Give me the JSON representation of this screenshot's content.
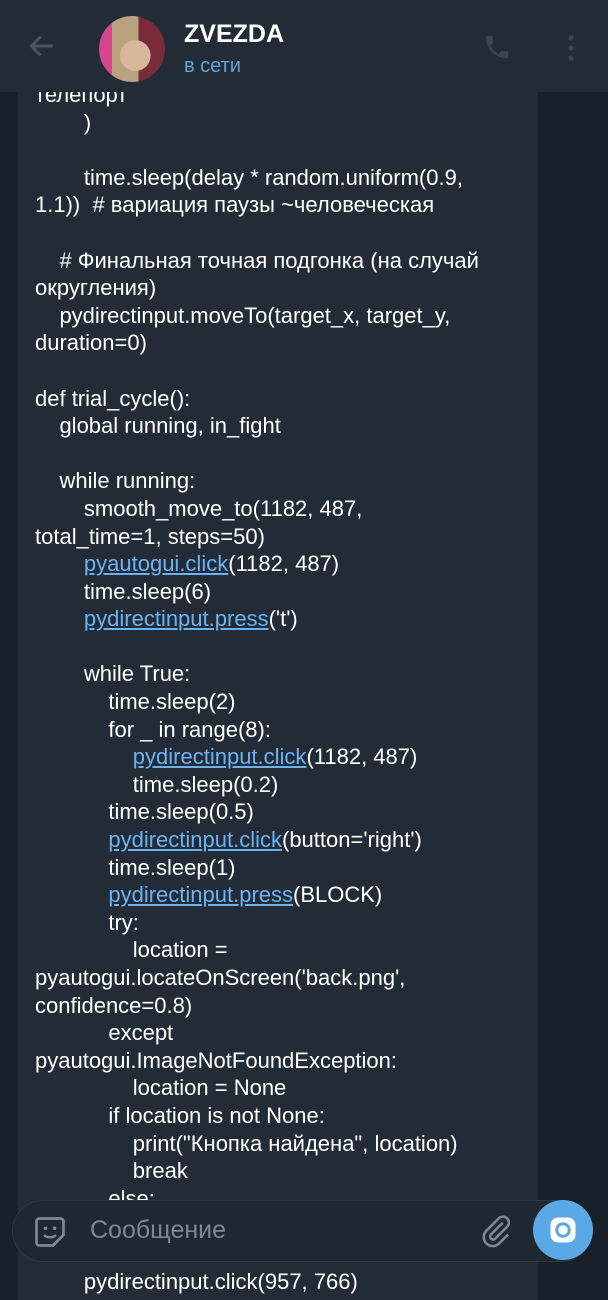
{
  "header": {
    "title": "ZVEZDA",
    "status": "в сети",
    "icons": [
      "back-arrow-icon",
      "avatar",
      "phone-icon",
      "more-vertical-icon"
    ]
  },
  "message": {
    "lines": [
      [
        {
          "t": "телепорт"
        }
      ],
      [
        {
          "t": "        )"
        }
      ],
      [
        {
          "t": ""
        }
      ],
      [
        {
          "t": "        time.sleep(delay * random.uniform(0.9,"
        }
      ],
      [
        {
          "t": "1.1))  # вариация паузы ~человеческая"
        }
      ],
      [
        {
          "t": ""
        }
      ],
      [
        {
          "t": "    # Финальная точная подгонка (на случай"
        }
      ],
      [
        {
          "t": "округления)"
        }
      ],
      [
        {
          "t": "    pydirectinput.moveTo(target_x, target_y,"
        }
      ],
      [
        {
          "t": "duration=0)"
        }
      ],
      [
        {
          "t": ""
        }
      ],
      [
        {
          "t": "def trial_cycle():"
        }
      ],
      [
        {
          "t": "    global running, in_fight"
        }
      ],
      [
        {
          "t": ""
        }
      ],
      [
        {
          "t": "    while running:"
        }
      ],
      [
        {
          "t": "        smooth_move_to(1182, 487,"
        }
      ],
      [
        {
          "t": "total_time=1, steps=50)"
        }
      ],
      [
        {
          "t": "        "
        },
        {
          "t": "pyautogui.click",
          "link": true
        },
        {
          "t": "(1182, 487)"
        }
      ],
      [
        {
          "t": "        time.sleep(6)"
        }
      ],
      [
        {
          "t": "        "
        },
        {
          "t": "pydirectinput.press",
          "link": true
        },
        {
          "t": "('t')"
        }
      ],
      [
        {
          "t": ""
        }
      ],
      [
        {
          "t": "        while True:"
        }
      ],
      [
        {
          "t": "            time.sleep(2)"
        }
      ],
      [
        {
          "t": "            for _ in range(8):"
        }
      ],
      [
        {
          "t": "                "
        },
        {
          "t": "pydirectinput.click",
          "link": true
        },
        {
          "t": "(1182, 487)"
        }
      ],
      [
        {
          "t": "                time.sleep(0.2)"
        }
      ],
      [
        {
          "t": "            time.sleep(0.5)"
        }
      ],
      [
        {
          "t": "            "
        },
        {
          "t": "pydirectinput.click",
          "link": true
        },
        {
          "t": "(button='right')"
        }
      ],
      [
        {
          "t": "            time.sleep(1)"
        }
      ],
      [
        {
          "t": "            "
        },
        {
          "t": "pydirectinput.press",
          "link": true
        },
        {
          "t": "(BLOCK)"
        }
      ],
      [
        {
          "t": "            try:"
        }
      ],
      [
        {
          "t": "                location ="
        }
      ],
      [
        {
          "t": "pyautogui.locateOnScreen('back.png',"
        }
      ],
      [
        {
          "t": "confidence=0.8)"
        }
      ],
      [
        {
          "t": "            except"
        }
      ],
      [
        {
          "t": "pyautogui.ImageNotFoundException:"
        }
      ],
      [
        {
          "t": "                location = None"
        }
      ],
      [
        {
          "t": "            if location is not None:"
        }
      ],
      [
        {
          "t": "                print(\"Кнопка найдена\", location)"
        }
      ],
      [
        {
          "t": "                break"
        }
      ],
      [
        {
          "t": "            else:"
        }
      ],
      [
        {
          "t": ""
        }
      ],
      [
        {
          "t": ""
        }
      ],
      [
        {
          "t": "        pydirectinput.click(957, 766)"
        }
      ]
    ]
  },
  "composer": {
    "placeholder": "Сообщение",
    "icons": [
      "sticker-icon",
      "attach-icon",
      "camera-icon"
    ]
  },
  "colors": {
    "header": "#232b37",
    "bubble": "#222b36",
    "link": "#6ab3f3",
    "accent": "#5aa8e6",
    "status": "#5ea5de"
  }
}
